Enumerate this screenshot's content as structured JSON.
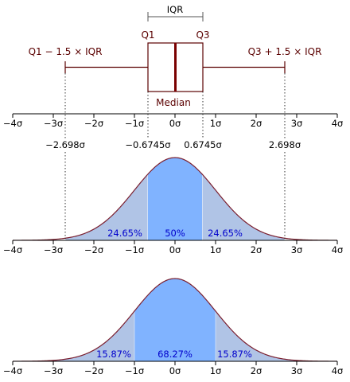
{
  "boxplot": {
    "iqr_label": "IQR",
    "q1_label": "Q1",
    "q3_label": "Q3",
    "median_label": "Median",
    "lower_whisker_label": "Q1 − 1.5 × IQR",
    "upper_whisker_label": "Q3 + 1.5 × IQR",
    "q1_value": -0.6745,
    "q3_value": 0.6745,
    "median_value": 0,
    "lower_whisker_value": -2.698,
    "upper_whisker_value": 2.698
  },
  "axis_ticks": [
    "−4σ",
    "−3σ",
    "−2σ",
    "−1σ",
    "0σ",
    "1σ",
    "2σ",
    "3σ",
    "4σ"
  ],
  "tick_values": [
    -4,
    -3,
    -2,
    -1,
    0,
    1,
    2,
    3,
    4
  ],
  "reference_values": [
    {
      "label": "−2.698σ",
      "value": -2.698
    },
    {
      "label": "−0.6745σ",
      "value": -0.6745
    },
    {
      "label": "0.6745σ",
      "value": 0.6745
    },
    {
      "label": "2.698σ",
      "value": 2.698
    }
  ],
  "density_iqr": {
    "regions": [
      {
        "label": "24.65%",
        "from": -2.698,
        "to": -0.6745
      },
      {
        "label": "50%",
        "from": -0.6745,
        "to": 0.6745
      },
      {
        "label": "24.65%",
        "from": 0.6745,
        "to": 2.698
      }
    ]
  },
  "density_sigma": {
    "regions": [
      {
        "label": "15.87%",
        "from": -4,
        "to": -1
      },
      {
        "label": "68.27%",
        "from": -1,
        "to": 1
      },
      {
        "label": "15.87%",
        "from": 1,
        "to": 4
      }
    ]
  },
  "colors": {
    "box_stroke": "#5a0000",
    "median_line": "#7a0000",
    "curve": "#7a1e2e",
    "fill_center": "#80b3ff",
    "fill_tails": "#b0c4e6",
    "percent_text": "#0000cc"
  }
}
